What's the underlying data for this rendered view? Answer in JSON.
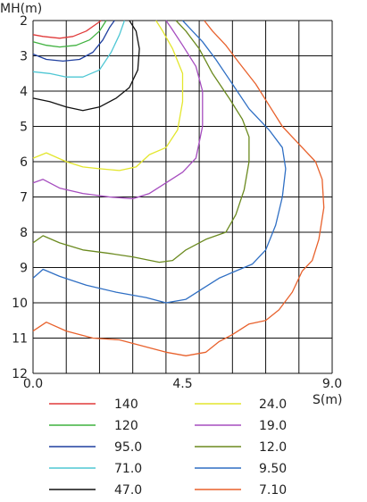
{
  "chart_data": {
    "type": "line",
    "title": "",
    "xlabel": "S(m)",
    "ylabel": "MH(m)",
    "xlim": [
      0,
      9
    ],
    "ylim": [
      2,
      12
    ],
    "y_inverted": true,
    "x_ticks": [
      "0.0",
      "4.5",
      "9.0"
    ],
    "y_ticks": [
      "2",
      "3",
      "4",
      "5",
      "6",
      "7",
      "8",
      "9",
      "10",
      "11",
      "12"
    ],
    "grid": true,
    "legend_position": "bottom",
    "series": [
      {
        "name": "140",
        "color": "#e03a3a",
        "points": [
          [
            0.0,
            2.4
          ],
          [
            0.3,
            2.45
          ],
          [
            0.8,
            2.5
          ],
          [
            1.2,
            2.45
          ],
          [
            1.6,
            2.3
          ],
          [
            1.9,
            2.1
          ],
          [
            2.05,
            2.0
          ]
        ]
      },
      {
        "name": "120",
        "color": "#3fb23f",
        "points": [
          [
            0.0,
            2.6
          ],
          [
            0.4,
            2.7
          ],
          [
            0.8,
            2.75
          ],
          [
            1.3,
            2.7
          ],
          [
            1.7,
            2.55
          ],
          [
            2.0,
            2.3
          ],
          [
            2.2,
            2.0
          ]
        ]
      },
      {
        "name": "95.0",
        "color": "#1f3f9f",
        "points": [
          [
            0.0,
            2.95
          ],
          [
            0.4,
            3.1
          ],
          [
            0.9,
            3.15
          ],
          [
            1.4,
            3.1
          ],
          [
            1.8,
            2.9
          ],
          [
            2.1,
            2.55
          ],
          [
            2.3,
            2.2
          ],
          [
            2.45,
            2.0
          ]
        ]
      },
      {
        "name": "71.0",
        "color": "#4fc7d4",
        "points": [
          [
            0.0,
            3.45
          ],
          [
            0.5,
            3.5
          ],
          [
            1.0,
            3.6
          ],
          [
            1.5,
            3.6
          ],
          [
            2.0,
            3.4
          ],
          [
            2.35,
            2.9
          ],
          [
            2.6,
            2.4
          ],
          [
            2.75,
            2.0
          ]
        ]
      },
      {
        "name": "47.0",
        "color": "#111111",
        "points": [
          [
            0.0,
            4.2
          ],
          [
            0.5,
            4.3
          ],
          [
            1.0,
            4.45
          ],
          [
            1.5,
            4.55
          ],
          [
            2.0,
            4.45
          ],
          [
            2.5,
            4.2
          ],
          [
            2.9,
            3.9
          ],
          [
            3.15,
            3.4
          ],
          [
            3.2,
            2.8
          ],
          [
            3.1,
            2.3
          ],
          [
            2.9,
            2.0
          ]
        ]
      },
      {
        "name": "24.0",
        "color": "#e3e62d",
        "points": [
          [
            0.0,
            5.9
          ],
          [
            0.4,
            5.75
          ],
          [
            1.0,
            6.0
          ],
          [
            1.5,
            6.15
          ],
          [
            2.0,
            6.2
          ],
          [
            2.6,
            6.25
          ],
          [
            3.1,
            6.15
          ],
          [
            3.5,
            5.8
          ],
          [
            4.0,
            5.6
          ],
          [
            4.35,
            5.1
          ],
          [
            4.5,
            4.3
          ],
          [
            4.5,
            3.5
          ],
          [
            4.2,
            2.8
          ],
          [
            3.9,
            2.3
          ],
          [
            3.7,
            2.0
          ]
        ]
      },
      {
        "name": "19.0",
        "color": "#a64dbf",
        "points": [
          [
            0.0,
            6.6
          ],
          [
            0.3,
            6.5
          ],
          [
            0.8,
            6.75
          ],
          [
            1.5,
            6.9
          ],
          [
            2.3,
            7.0
          ],
          [
            3.0,
            7.05
          ],
          [
            3.5,
            6.9
          ],
          [
            4.0,
            6.6
          ],
          [
            4.5,
            6.3
          ],
          [
            4.9,
            5.9
          ],
          [
            5.1,
            5.0
          ],
          [
            5.1,
            4.0
          ],
          [
            4.9,
            3.3
          ],
          [
            4.5,
            2.7
          ],
          [
            4.15,
            2.2
          ],
          [
            4.0,
            2.0
          ]
        ]
      },
      {
        "name": "12.0",
        "color": "#6b8a1f",
        "points": [
          [
            0.0,
            8.3
          ],
          [
            0.3,
            8.1
          ],
          [
            0.8,
            8.3
          ],
          [
            1.5,
            8.5
          ],
          [
            2.3,
            8.6
          ],
          [
            3.0,
            8.7
          ],
          [
            3.8,
            8.85
          ],
          [
            4.2,
            8.8
          ],
          [
            4.6,
            8.5
          ],
          [
            5.2,
            8.2
          ],
          [
            5.8,
            8.0
          ],
          [
            6.1,
            7.5
          ],
          [
            6.35,
            6.8
          ],
          [
            6.5,
            6.0
          ],
          [
            6.5,
            5.3
          ],
          [
            6.3,
            4.8
          ],
          [
            5.9,
            4.2
          ],
          [
            5.4,
            3.5
          ],
          [
            5.0,
            2.8
          ],
          [
            4.6,
            2.3
          ],
          [
            4.3,
            2.0
          ]
        ]
      },
      {
        "name": "9.50",
        "color": "#2f6fc4",
        "points": [
          [
            0.0,
            9.3
          ],
          [
            0.3,
            9.05
          ],
          [
            0.8,
            9.25
          ],
          [
            1.6,
            9.5
          ],
          [
            2.5,
            9.7
          ],
          [
            3.4,
            9.85
          ],
          [
            4.0,
            10.0
          ],
          [
            4.6,
            9.9
          ],
          [
            5.1,
            9.6
          ],
          [
            5.6,
            9.3
          ],
          [
            6.1,
            9.1
          ],
          [
            6.6,
            8.9
          ],
          [
            7.0,
            8.5
          ],
          [
            7.3,
            7.8
          ],
          [
            7.5,
            7.0
          ],
          [
            7.6,
            6.2
          ],
          [
            7.5,
            5.6
          ],
          [
            7.1,
            5.1
          ],
          [
            6.5,
            4.5
          ],
          [
            6.0,
            3.8
          ],
          [
            5.5,
            3.1
          ],
          [
            5.1,
            2.6
          ],
          [
            4.7,
            2.2
          ],
          [
            4.5,
            2.0
          ]
        ]
      },
      {
        "name": "7.10",
        "color": "#e8612c",
        "points": [
          [
            0.0,
            10.8
          ],
          [
            0.4,
            10.55
          ],
          [
            1.0,
            10.8
          ],
          [
            1.8,
            11.0
          ],
          [
            2.6,
            11.05
          ],
          [
            3.4,
            11.25
          ],
          [
            4.0,
            11.4
          ],
          [
            4.6,
            11.5
          ],
          [
            5.2,
            11.4
          ],
          [
            5.6,
            11.1
          ],
          [
            6.0,
            10.9
          ],
          [
            6.5,
            10.6
          ],
          [
            7.0,
            10.5
          ],
          [
            7.4,
            10.2
          ],
          [
            7.8,
            9.7
          ],
          [
            8.1,
            9.1
          ],
          [
            8.4,
            8.8
          ],
          [
            8.6,
            8.2
          ],
          [
            8.75,
            7.3
          ],
          [
            8.7,
            6.5
          ],
          [
            8.5,
            6.0
          ],
          [
            8.0,
            5.5
          ],
          [
            7.5,
            5.0
          ],
          [
            7.1,
            4.4
          ],
          [
            6.7,
            3.8
          ],
          [
            6.2,
            3.2
          ],
          [
            5.8,
            2.7
          ],
          [
            5.4,
            2.3
          ],
          [
            5.15,
            2.0
          ]
        ]
      }
    ]
  }
}
